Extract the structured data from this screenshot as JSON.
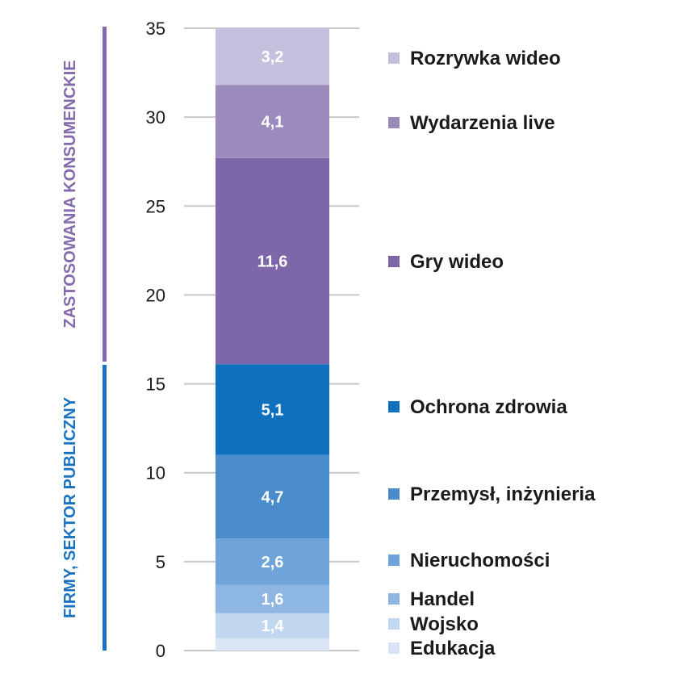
{
  "chart_data": {
    "type": "bar",
    "stacked": true,
    "ylim": [
      0,
      35
    ],
    "yticks": [
      0,
      5,
      10,
      15,
      20,
      25,
      30,
      35
    ],
    "grid": true,
    "legend_position": "right",
    "series": [
      {
        "name": "Edukacja",
        "value": 0.7,
        "label": "",
        "color": "#d9e5f5"
      },
      {
        "name": "Wojsko",
        "value": 1.4,
        "label": "1,4",
        "color": "#c2d8f0"
      },
      {
        "name": "Handel",
        "value": 1.6,
        "label": "1,6",
        "color": "#8db6e2"
      },
      {
        "name": "Nieruchomości",
        "value": 2.6,
        "label": "2,6",
        "color": "#6fa4da"
      },
      {
        "name": "Przemysł, inżynieria",
        "value": 4.7,
        "label": "4,7",
        "color": "#4a8ccb"
      },
      {
        "name": "Ochrona zdrowia",
        "value": 5.1,
        "label": "5,1",
        "color": "#0f70be"
      },
      {
        "name": "Gry wideo",
        "value": 11.6,
        "label": "11,6",
        "color": "#7d67a9"
      },
      {
        "name": "Wydarzenia live",
        "value": 4.1,
        "label": "4,1",
        "color": "#9b8bbd"
      },
      {
        "name": "Rozrywka wideo",
        "value": 3.2,
        "label": "3,2",
        "color": "#c6bedd"
      }
    ],
    "groups": [
      {
        "name": "ZASTOSOWANIA KONSUMENCKIE",
        "from": 16.1,
        "to": 35,
        "color": "#8469ad"
      },
      {
        "name": "FIRMY, SEKTOR PUBLICZNY",
        "from": 0,
        "to": 16.1,
        "color": "#1a72c2"
      }
    ]
  }
}
